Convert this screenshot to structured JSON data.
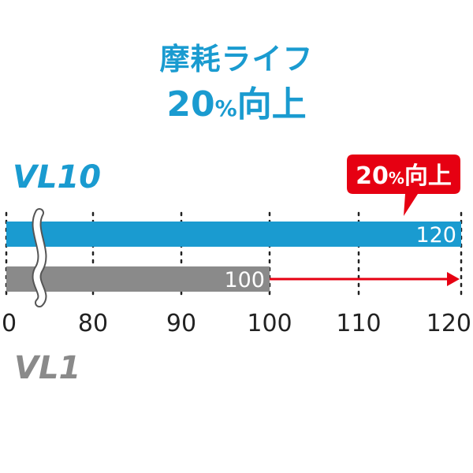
{
  "header": {
    "line1": "摩耗ライフ",
    "line2_value": "20",
    "line2_pct": "%",
    "line2_text": "向上"
  },
  "colors": {
    "accent": "#1a9bd0",
    "vl1": "#8a8a8a",
    "arrow": "#e60012",
    "callout": "#e60012"
  },
  "chart_data": {
    "type": "bar",
    "orientation": "horizontal",
    "x_ticks": [
      "0",
      "80",
      "90",
      "100",
      "110",
      "120"
    ],
    "axis_break": true,
    "series": [
      {
        "name": "VL10",
        "value": 120,
        "label": "120",
        "color": "#1a9bd0"
      },
      {
        "name": "VL1",
        "value": 100,
        "label": "100",
        "color": "#8a8a8a"
      }
    ],
    "annotation": {
      "text_value": "20",
      "text_pct": "%",
      "text_word": "向上",
      "arrow_from": 100,
      "arrow_to": 120
    },
    "grid": true
  }
}
